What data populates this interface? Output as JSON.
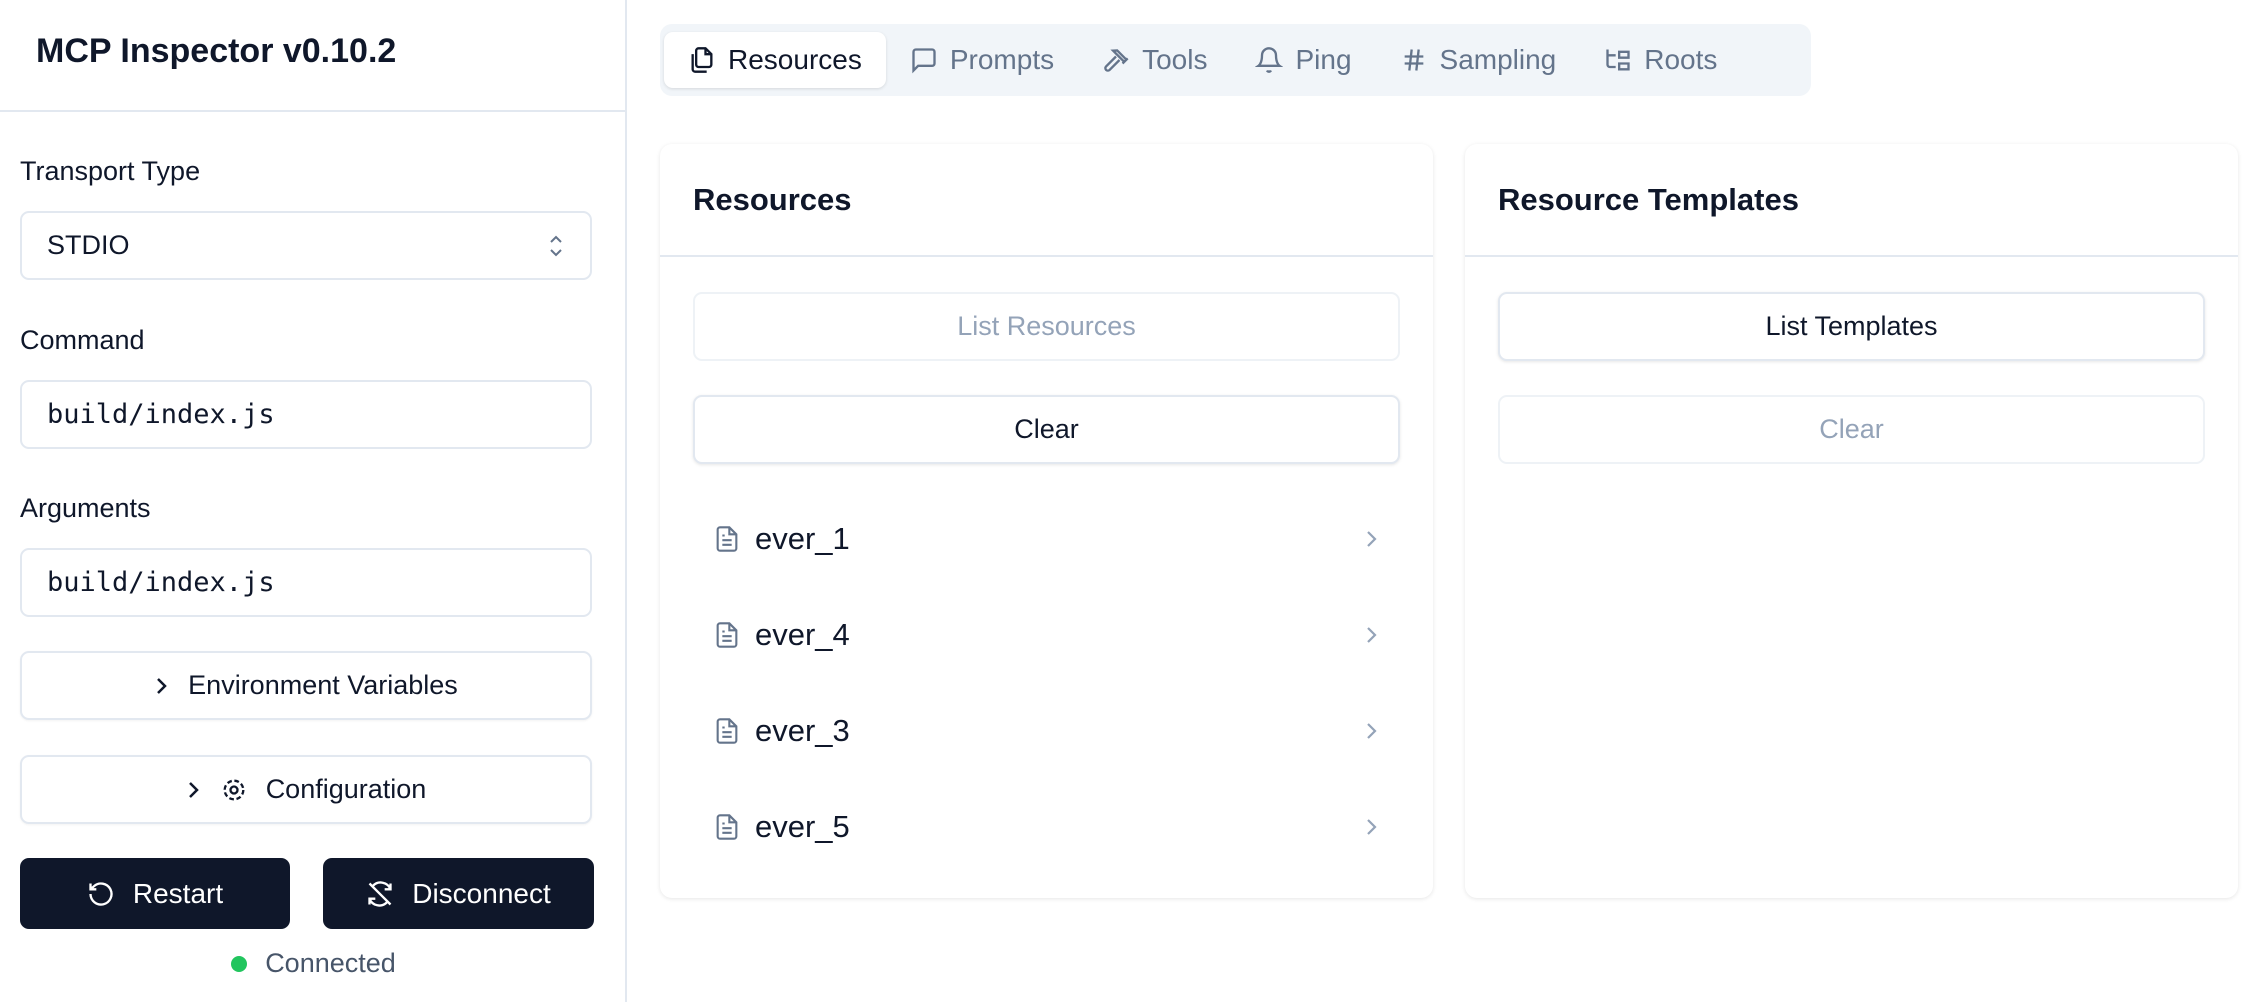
{
  "sidebar": {
    "title": "MCP Inspector v0.10.2",
    "transport_label": "Transport Type",
    "transport_value": "STDIO",
    "command_label": "Command",
    "command_value": "build/index.js",
    "arguments_label": "Arguments",
    "arguments_value": "build/index.js",
    "env_label": "Environment Variables",
    "config_label": "Configuration",
    "restart_label": "Restart",
    "disconnect_label": "Disconnect",
    "status": "Connected",
    "status_color": "#22c55e"
  },
  "tabs": [
    {
      "label": "Resources",
      "icon": "files-icon",
      "active": true
    },
    {
      "label": "Prompts",
      "icon": "message-square-icon"
    },
    {
      "label": "Tools",
      "icon": "hammer-icon"
    },
    {
      "label": "Ping",
      "icon": "bell-icon"
    },
    {
      "label": "Sampling",
      "icon": "hash-icon"
    },
    {
      "label": "Roots",
      "icon": "folder-tree-icon"
    }
  ],
  "resources": {
    "title": "Resources",
    "list_button": "List Resources",
    "clear_button": "Clear",
    "items": [
      "ever_1",
      "ever_4",
      "ever_3",
      "ever_5"
    ]
  },
  "templates": {
    "title": "Resource Templates",
    "list_button": "List Templates",
    "clear_button": "Clear"
  }
}
